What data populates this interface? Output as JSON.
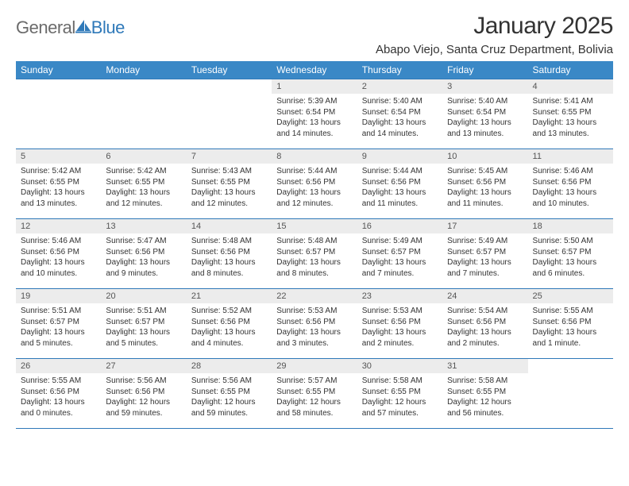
{
  "brand": {
    "part1": "General",
    "part2": "Blue"
  },
  "title": "January 2025",
  "location": "Abapo Viejo, Santa Cruz Department, Bolivia",
  "colors": {
    "header_bg": "#3a88c6",
    "header_text": "#ffffff",
    "border": "#2f79b9",
    "daynum_bg": "#ececec",
    "body_text": "#333333",
    "logo_gray": "#6b6b6b",
    "logo_blue": "#2f79b9",
    "page_bg": "#ffffff"
  },
  "weekdays": [
    "Sunday",
    "Monday",
    "Tuesday",
    "Wednesday",
    "Thursday",
    "Friday",
    "Saturday"
  ],
  "weeks": [
    [
      null,
      null,
      null,
      {
        "n": "1",
        "sr": "5:39 AM",
        "ss": "6:54 PM",
        "dl": "13 hours and 14 minutes."
      },
      {
        "n": "2",
        "sr": "5:40 AM",
        "ss": "6:54 PM",
        "dl": "13 hours and 14 minutes."
      },
      {
        "n": "3",
        "sr": "5:40 AM",
        "ss": "6:54 PM",
        "dl": "13 hours and 13 minutes."
      },
      {
        "n": "4",
        "sr": "5:41 AM",
        "ss": "6:55 PM",
        "dl": "13 hours and 13 minutes."
      }
    ],
    [
      {
        "n": "5",
        "sr": "5:42 AM",
        "ss": "6:55 PM",
        "dl": "13 hours and 13 minutes."
      },
      {
        "n": "6",
        "sr": "5:42 AM",
        "ss": "6:55 PM",
        "dl": "13 hours and 12 minutes."
      },
      {
        "n": "7",
        "sr": "5:43 AM",
        "ss": "6:55 PM",
        "dl": "13 hours and 12 minutes."
      },
      {
        "n": "8",
        "sr": "5:44 AM",
        "ss": "6:56 PM",
        "dl": "13 hours and 12 minutes."
      },
      {
        "n": "9",
        "sr": "5:44 AM",
        "ss": "6:56 PM",
        "dl": "13 hours and 11 minutes."
      },
      {
        "n": "10",
        "sr": "5:45 AM",
        "ss": "6:56 PM",
        "dl": "13 hours and 11 minutes."
      },
      {
        "n": "11",
        "sr": "5:46 AM",
        "ss": "6:56 PM",
        "dl": "13 hours and 10 minutes."
      }
    ],
    [
      {
        "n": "12",
        "sr": "5:46 AM",
        "ss": "6:56 PM",
        "dl": "13 hours and 10 minutes."
      },
      {
        "n": "13",
        "sr": "5:47 AM",
        "ss": "6:56 PM",
        "dl": "13 hours and 9 minutes."
      },
      {
        "n": "14",
        "sr": "5:48 AM",
        "ss": "6:56 PM",
        "dl": "13 hours and 8 minutes."
      },
      {
        "n": "15",
        "sr": "5:48 AM",
        "ss": "6:57 PM",
        "dl": "13 hours and 8 minutes."
      },
      {
        "n": "16",
        "sr": "5:49 AM",
        "ss": "6:57 PM",
        "dl": "13 hours and 7 minutes."
      },
      {
        "n": "17",
        "sr": "5:49 AM",
        "ss": "6:57 PM",
        "dl": "13 hours and 7 minutes."
      },
      {
        "n": "18",
        "sr": "5:50 AM",
        "ss": "6:57 PM",
        "dl": "13 hours and 6 minutes."
      }
    ],
    [
      {
        "n": "19",
        "sr": "5:51 AM",
        "ss": "6:57 PM",
        "dl": "13 hours and 5 minutes."
      },
      {
        "n": "20",
        "sr": "5:51 AM",
        "ss": "6:57 PM",
        "dl": "13 hours and 5 minutes."
      },
      {
        "n": "21",
        "sr": "5:52 AM",
        "ss": "6:56 PM",
        "dl": "13 hours and 4 minutes."
      },
      {
        "n": "22",
        "sr": "5:53 AM",
        "ss": "6:56 PM",
        "dl": "13 hours and 3 minutes."
      },
      {
        "n": "23",
        "sr": "5:53 AM",
        "ss": "6:56 PM",
        "dl": "13 hours and 2 minutes."
      },
      {
        "n": "24",
        "sr": "5:54 AM",
        "ss": "6:56 PM",
        "dl": "13 hours and 2 minutes."
      },
      {
        "n": "25",
        "sr": "5:55 AM",
        "ss": "6:56 PM",
        "dl": "13 hours and 1 minute."
      }
    ],
    [
      {
        "n": "26",
        "sr": "5:55 AM",
        "ss": "6:56 PM",
        "dl": "13 hours and 0 minutes."
      },
      {
        "n": "27",
        "sr": "5:56 AM",
        "ss": "6:56 PM",
        "dl": "12 hours and 59 minutes."
      },
      {
        "n": "28",
        "sr": "5:56 AM",
        "ss": "6:55 PM",
        "dl": "12 hours and 59 minutes."
      },
      {
        "n": "29",
        "sr": "5:57 AM",
        "ss": "6:55 PM",
        "dl": "12 hours and 58 minutes."
      },
      {
        "n": "30",
        "sr": "5:58 AM",
        "ss": "6:55 PM",
        "dl": "12 hours and 57 minutes."
      },
      {
        "n": "31",
        "sr": "5:58 AM",
        "ss": "6:55 PM",
        "dl": "12 hours and 56 minutes."
      },
      null
    ]
  ],
  "labels": {
    "sunrise": "Sunrise:",
    "sunset": "Sunset:",
    "daylight": "Daylight:"
  }
}
